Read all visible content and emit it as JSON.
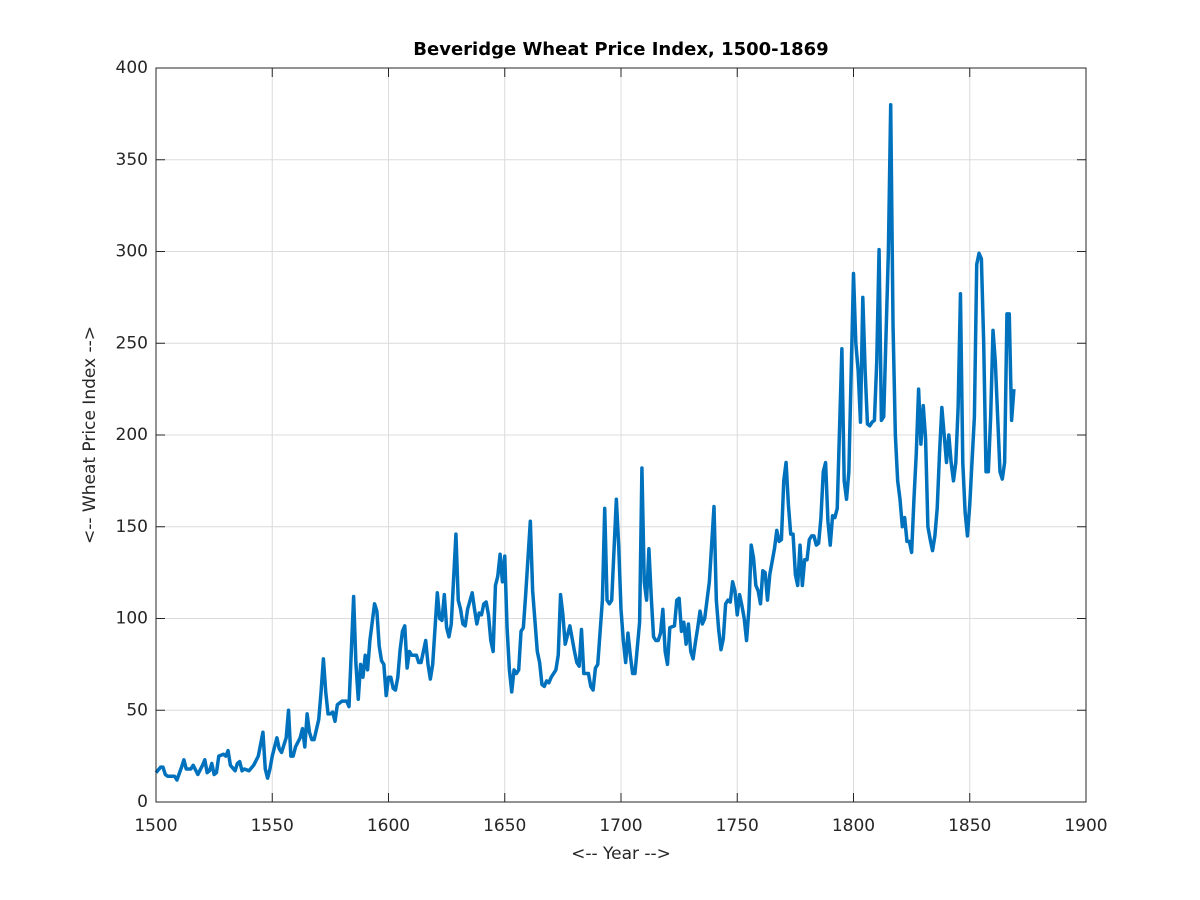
{
  "chart_data": {
    "type": "line",
    "title": "Beveridge Wheat Price Index, 1500-1869",
    "xlabel": "<-- Year -->",
    "ylabel": "<-- Wheat Price Index -->",
    "xlim": [
      1500,
      1900
    ],
    "ylim": [
      0,
      400
    ],
    "xticks": [
      1500,
      1550,
      1600,
      1650,
      1700,
      1750,
      1800,
      1850,
      1900
    ],
    "yticks": [
      0,
      50,
      100,
      150,
      200,
      250,
      300,
      350,
      400
    ],
    "grid": true,
    "series": [
      {
        "name": "Wheat Price Index",
        "color": "#0072bd",
        "x": [
          1500,
          1502,
          1503,
          1504,
          1505,
          1508,
          1509,
          1511,
          1512,
          1513,
          1515,
          1516,
          1518,
          1520,
          1521,
          1522,
          1523,
          1524,
          1525,
          1526,
          1527,
          1529,
          1530,
          1531,
          1532,
          1534,
          1535,
          1536,
          1537,
          1538,
          1540,
          1542,
          1544,
          1546,
          1547,
          1548,
          1549,
          1550,
          1552,
          1553,
          1554,
          1556,
          1557,
          1558,
          1559,
          1560,
          1562,
          1563,
          1564,
          1565,
          1566,
          1567,
          1568,
          1570,
          1571,
          1572,
          1573,
          1574,
          1575,
          1576,
          1577,
          1578,
          1580,
          1582,
          1583,
          1585,
          1586,
          1587,
          1588,
          1589,
          1590,
          1591,
          1592,
          1594,
          1595,
          1596,
          1597,
          1598,
          1599,
          1600,
          1601,
          1602,
          1603,
          1604,
          1605,
          1606,
          1607,
          1608,
          1609,
          1610,
          1612,
          1613,
          1614,
          1616,
          1617,
          1618,
          1619,
          1621,
          1622,
          1623,
          1624,
          1625,
          1626,
          1627,
          1629,
          1630,
          1631,
          1632,
          1633,
          1634,
          1636,
          1637,
          1638,
          1639,
          1640,
          1641,
          1642,
          1643,
          1644,
          1645,
          1646,
          1647,
          1648,
          1649,
          1650,
          1651,
          1652,
          1653,
          1654,
          1655,
          1656,
          1657,
          1658,
          1659,
          1661,
          1662,
          1664,
          1665,
          1666,
          1667,
          1668,
          1669,
          1670,
          1672,
          1673,
          1674,
          1675,
          1676,
          1678,
          1680,
          1681,
          1682,
          1683,
          1684,
          1686,
          1687,
          1688,
          1689,
          1690,
          1692,
          1693,
          1694,
          1695,
          1696,
          1698,
          1699,
          1700,
          1701,
          1702,
          1703,
          1704,
          1705,
          1706,
          1708,
          1709,
          1710,
          1711,
          1712,
          1713,
          1714,
          1715,
          1716,
          1717,
          1718,
          1719,
          1720,
          1721,
          1723,
          1724,
          1725,
          1726,
          1727,
          1728,
          1729,
          1730,
          1731,
          1732,
          1733,
          1734,
          1735,
          1736,
          1738,
          1740,
          1741,
          1742,
          1743,
          1744,
          1745,
          1746,
          1747,
          1748,
          1749,
          1750,
          1751,
          1752,
          1753,
          1754,
          1755,
          1756,
          1757,
          1758,
          1759,
          1760,
          1761,
          1762,
          1763,
          1764,
          1766,
          1767,
          1768,
          1769,
          1770,
          1771,
          1772,
          1773,
          1774,
          1775,
          1776,
          1777,
          1778,
          1779,
          1780,
          1781,
          1782,
          1783,
          1784,
          1785,
          1786,
          1787,
          1788,
          1789,
          1790,
          1791,
          1792,
          1793,
          1795,
          1796,
          1797,
          1798,
          1800,
          1801,
          1802,
          1803,
          1804,
          1805,
          1806,
          1807,
          1808,
          1809,
          1810,
          1811,
          1812,
          1813,
          1815,
          1816,
          1817,
          1818,
          1819,
          1820,
          1821,
          1822,
          1823,
          1824,
          1825,
          1826,
          1827,
          1828,
          1829,
          1830,
          1831,
          1832,
          1833,
          1834,
          1835,
          1836,
          1837,
          1838,
          1839,
          1840,
          1841,
          1842,
          1843,
          1844,
          1845,
          1846,
          1847,
          1848,
          1849,
          1850,
          1852,
          1853,
          1854,
          1855,
          1856,
          1857,
          1858,
          1859,
          1860,
          1861,
          1862,
          1863,
          1864,
          1865,
          1866,
          1867,
          1868,
          1869
        ],
        "values": [
          16,
          19,
          19,
          15,
          14,
          14,
          12,
          19,
          23,
          18,
          18,
          20,
          15,
          20,
          23,
          16,
          17,
          21,
          15,
          16,
          25,
          26,
          25,
          28,
          20,
          17,
          21,
          22,
          17,
          18,
          17,
          20,
          25,
          38,
          18,
          13,
          18,
          25,
          35,
          29,
          27,
          35,
          50,
          25,
          25,
          30,
          35,
          40,
          30,
          48,
          38,
          34,
          34,
          45,
          60,
          78,
          60,
          48,
          48,
          49,
          44,
          53,
          55,
          55,
          52,
          112,
          75,
          56,
          75,
          68,
          80,
          72,
          88,
          108,
          104,
          85,
          77,
          75,
          58,
          68,
          68,
          62,
          61,
          68,
          83,
          93,
          96,
          73,
          82,
          80,
          80,
          76,
          76,
          88,
          75,
          67,
          75,
          114,
          100,
          99,
          113,
          95,
          90,
          97,
          146,
          110,
          105,
          97,
          96,
          105,
          114,
          105,
          97,
          103,
          102,
          108,
          109,
          102,
          88,
          82,
          118,
          123,
          135,
          120,
          134,
          95,
          72,
          60,
          72,
          70,
          72,
          93,
          95,
          113,
          153,
          115,
          82,
          76,
          64,
          63,
          66,
          65,
          68,
          72,
          80,
          113,
          102,
          86,
          96,
          82,
          76,
          74,
          94,
          70,
          70,
          63,
          61,
          73,
          75,
          110,
          160,
          110,
          108,
          110,
          165,
          140,
          105,
          88,
          76,
          92,
          80,
          70,
          70,
          98,
          182,
          120,
          110,
          138,
          112,
          90,
          88,
          88,
          92,
          105,
          82,
          75,
          95,
          96,
          110,
          111,
          93,
          98,
          86,
          97,
          82,
          78,
          87,
          95,
          104,
          97,
          100,
          120,
          161,
          110,
          94,
          83,
          89,
          108,
          110,
          109,
          120,
          115,
          102,
          113,
          107,
          100,
          88,
          105,
          140,
          133,
          118,
          115,
          108,
          126,
          125,
          110,
          124,
          138,
          148,
          142,
          143,
          175,
          185,
          162,
          146,
          146,
          124,
          118,
          140,
          118,
          132,
          132,
          143,
          145,
          145,
          140,
          141,
          155,
          180,
          185,
          153,
          140,
          156,
          155,
          160,
          247,
          175,
          165,
          180,
          288,
          250,
          235,
          207,
          275,
          235,
          206,
          205,
          207,
          208,
          240,
          301,
          208,
          210,
          300,
          380,
          260,
          200,
          175,
          165,
          150,
          155,
          142,
          142,
          136,
          165,
          190,
          225,
          195,
          216,
          198,
          150,
          143,
          137,
          145,
          160,
          190,
          215,
          200,
          185,
          200,
          185,
          175,
          185,
          215,
          277,
          185,
          158,
          145,
          162,
          210,
          293,
          299,
          296,
          250,
          180,
          180,
          210,
          257,
          240,
          210,
          180,
          176,
          185,
          266,
          266,
          208,
          225
        ]
      }
    ]
  }
}
